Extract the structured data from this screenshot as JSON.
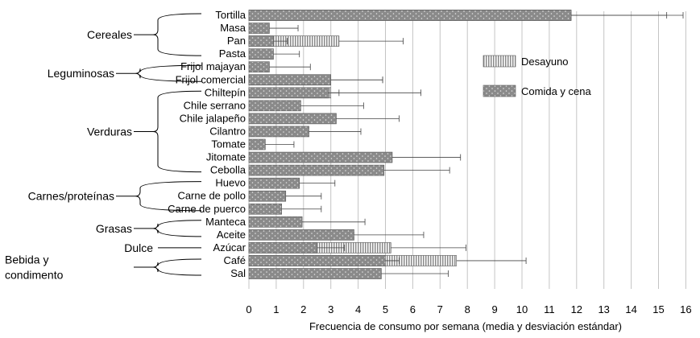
{
  "chart_data": {
    "type": "bar",
    "orientation": "horizontal",
    "xlabel": "Frecuencia de consumo por semana (media y desviación estándar)",
    "xlim": [
      0,
      16
    ],
    "xticks": [
      0,
      1,
      2,
      3,
      4,
      5,
      6,
      7,
      8,
      9,
      10,
      11,
      12,
      13,
      14,
      15,
      16
    ],
    "grid": "vertical",
    "legend_position": "right",
    "series": [
      {
        "name": "Desayuno",
        "pattern": "vertical-stripes",
        "color": "#9a9a9a"
      },
      {
        "name": "Comida y cena",
        "pattern": "dotted",
        "color": "#888888"
      }
    ],
    "categories": [
      {
        "label": "Tortilla",
        "bars": [
          {
            "series": "Desayuno",
            "value": 11.8,
            "sd": 3.5
          },
          {
            "series": "Comida y cena",
            "value": 11.8,
            "sd": 4.1
          }
        ]
      },
      {
        "label": "Masa",
        "bars": [
          {
            "series": "Comida y cena",
            "value": 0.75,
            "sd": 1.05
          }
        ]
      },
      {
        "label": "Pan",
        "bars": [
          {
            "series": "Desayuno",
            "value": 3.3,
            "sd": 2.35
          },
          {
            "series": "Comida y cena",
            "value": 0.9,
            "sd": 0.5
          }
        ]
      },
      {
        "label": "Pasta",
        "bars": [
          {
            "series": "Comida y cena",
            "value": 0.9,
            "sd": 0.95
          }
        ]
      },
      {
        "label": "Frijol majayan",
        "bars": [
          {
            "series": "Comida y cena",
            "value": 0.75,
            "sd": 1.5
          }
        ]
      },
      {
        "label": "Frijol comercial",
        "bars": [
          {
            "series": "Desayuno",
            "value": 3.0,
            "sd": 1.9
          },
          {
            "series": "Comida y cena",
            "value": 3.0,
            "sd": 1.9
          }
        ]
      },
      {
        "label": "Chiltepín",
        "bars": [
          {
            "series": "Desayuno",
            "value": 3.0,
            "sd": 3.3
          },
          {
            "series": "Comida y cena",
            "value": 2.9,
            "sd": 0.4
          }
        ]
      },
      {
        "label": "Chile serrano",
        "bars": [
          {
            "series": "Comida y cena",
            "value": 1.9,
            "sd": 2.3
          }
        ]
      },
      {
        "label": "Chile jalapeño",
        "bars": [
          {
            "series": "Comida y cena",
            "value": 3.2,
            "sd": 2.3
          }
        ]
      },
      {
        "label": "Cilantro",
        "bars": [
          {
            "series": "Comida y cena",
            "value": 2.2,
            "sd": 1.9
          }
        ]
      },
      {
        "label": "Tomate",
        "bars": [
          {
            "series": "Comida y cena",
            "value": 0.6,
            "sd": 1.05
          }
        ]
      },
      {
        "label": "Jitomate",
        "bars": [
          {
            "series": "Comida y cena",
            "value": 5.25,
            "sd": 2.5
          }
        ]
      },
      {
        "label": "Cebolla",
        "bars": [
          {
            "series": "Comida y cena",
            "value": 4.95,
            "sd": 2.4
          }
        ]
      },
      {
        "label": "Huevo",
        "bars": [
          {
            "series": "Comida y cena",
            "value": 1.85,
            "sd": 1.3
          }
        ]
      },
      {
        "label": "Carne de pollo",
        "bars": [
          {
            "series": "Comida y cena",
            "value": 1.35,
            "sd": 1.3
          }
        ]
      },
      {
        "label": "Carne de puerco",
        "bars": [
          {
            "series": "Comida y cena",
            "value": 1.2,
            "sd": 1.45
          }
        ]
      },
      {
        "label": "Manteca",
        "bars": [
          {
            "series": "Comida y cena",
            "value": 1.95,
            "sd": 2.3
          }
        ]
      },
      {
        "label": "Aceite",
        "bars": [
          {
            "series": "Comida y cena",
            "value": 3.85,
            "sd": 2.55
          }
        ]
      },
      {
        "label": "Azúcar",
        "bars": [
          {
            "series": "Desayuno",
            "value": 5.2,
            "sd": 2.75
          },
          {
            "series": "Comida y cena",
            "value": 2.5,
            "sd": 1.0
          }
        ]
      },
      {
        "label": "Café",
        "bars": [
          {
            "series": "Desayuno",
            "value": 7.6,
            "sd": 2.55
          },
          {
            "series": "Comida y cena",
            "value": 5.0,
            "sd": 0.5
          }
        ]
      },
      {
        "label": "Sal",
        "bars": [
          {
            "series": "Comida y cena",
            "value": 4.85,
            "sd": 2.45
          }
        ]
      }
    ],
    "groups": [
      {
        "label_lines": [
          "Cereales"
        ],
        "first": 0,
        "last": 3
      },
      {
        "label_lines": [
          "Leguminosas"
        ],
        "first": 4,
        "last": 5
      },
      {
        "label_lines": [
          "Verduras"
        ],
        "first": 6,
        "last": 12
      },
      {
        "label_lines": [
          "Carnes/proteínas"
        ],
        "first": 13,
        "last": 15
      },
      {
        "label_lines": [
          "Grasas"
        ],
        "first": 16,
        "last": 17
      },
      {
        "label_lines": [
          "Dulce"
        ],
        "first": 18,
        "last": 18
      },
      {
        "label_lines": [
          "Bebida y",
          "condimento"
        ],
        "first": 19,
        "last": 20
      }
    ]
  }
}
